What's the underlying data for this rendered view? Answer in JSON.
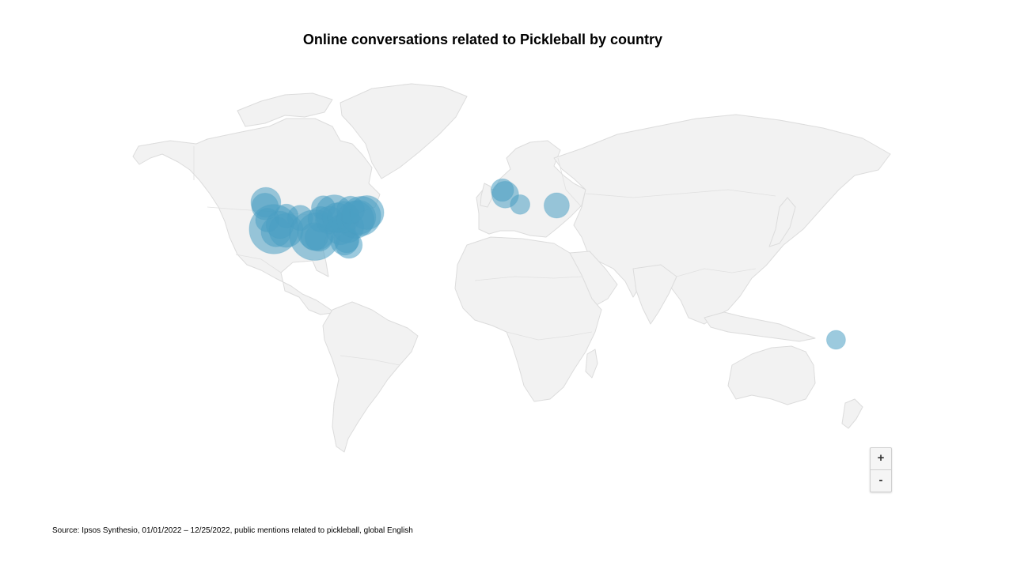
{
  "title": "Online conversations related to Pickleball by country",
  "source": "Source: Ipsos Synthesio, 01/01/2022 – 12/25/2022, public mentions related to pickleball, global English",
  "zoom": {
    "in_label": "+",
    "out_label": "-"
  },
  "colors": {
    "bubble": "#4a9fc2",
    "land": "#f2f2f2",
    "border": "#dcdcdc"
  },
  "map_data": {
    "type": "bubble-map",
    "bubbles": [
      {
        "lon": -122.3,
        "lat": 47.6,
        "size": 0.35
      },
      {
        "lon": -122.7,
        "lat": 45.5,
        "size": 0.28
      },
      {
        "lon": -121.5,
        "lat": 38.6,
        "size": 0.22
      },
      {
        "lon": -118.2,
        "lat": 34.0,
        "size": 0.95
      },
      {
        "lon": -117.1,
        "lat": 32.7,
        "size": 0.35
      },
      {
        "lon": -115.1,
        "lat": 36.2,
        "size": 0.3
      },
      {
        "lon": -112.0,
        "lat": 33.4,
        "size": 0.45
      },
      {
        "lon": -111.9,
        "lat": 40.7,
        "size": 0.22
      },
      {
        "lon": -104.9,
        "lat": 39.7,
        "size": 0.25
      },
      {
        "lon": -97.5,
        "lat": 31.0,
        "size": 1.0
      },
      {
        "lon": -96.8,
        "lat": 32.8,
        "size": 0.55
      },
      {
        "lon": -95.4,
        "lat": 29.8,
        "size": 0.3
      },
      {
        "lon": -97.7,
        "lat": 30.3,
        "size": 0.3
      },
      {
        "lon": -94.6,
        "lat": 39.1,
        "size": 0.25
      },
      {
        "lon": -93.2,
        "lat": 44.9,
        "size": 0.22
      },
      {
        "lon": -90.2,
        "lat": 38.6,
        "size": 0.3
      },
      {
        "lon": -87.6,
        "lat": 41.9,
        "size": 0.55
      },
      {
        "lon": -86.2,
        "lat": 39.8,
        "size": 0.35
      },
      {
        "lon": -84.4,
        "lat": 33.7,
        "size": 0.35
      },
      {
        "lon": -83.0,
        "lat": 40.0,
        "size": 0.4
      },
      {
        "lon": -82.5,
        "lat": 27.9,
        "size": 0.3
      },
      {
        "lon": -81.4,
        "lat": 28.5,
        "size": 0.25
      },
      {
        "lon": -80.8,
        "lat": 35.2,
        "size": 0.4
      },
      {
        "lon": -80.2,
        "lat": 26.0,
        "size": 0.28
      },
      {
        "lon": -77.0,
        "lat": 38.9,
        "size": 0.55
      },
      {
        "lon": -75.2,
        "lat": 40.0,
        "size": 0.45
      },
      {
        "lon": -74.0,
        "lat": 40.7,
        "size": 0.6
      },
      {
        "lon": -71.1,
        "lat": 42.4,
        "size": 0.45
      },
      {
        "lon": -79.4,
        "lat": 43.7,
        "size": 0.3
      },
      {
        "lon": -2.5,
        "lat": 53.8,
        "size": 0.2
      },
      {
        "lon": -1.0,
        "lat": 51.5,
        "size": 0.28
      },
      {
        "lon": 6.5,
        "lat": 46.5,
        "size": 0.15
      },
      {
        "lon": 25.0,
        "lat": 46.0,
        "size": 0.25
      },
      {
        "lon": 166.5,
        "lat": -22.0,
        "size": 0.14
      }
    ]
  }
}
